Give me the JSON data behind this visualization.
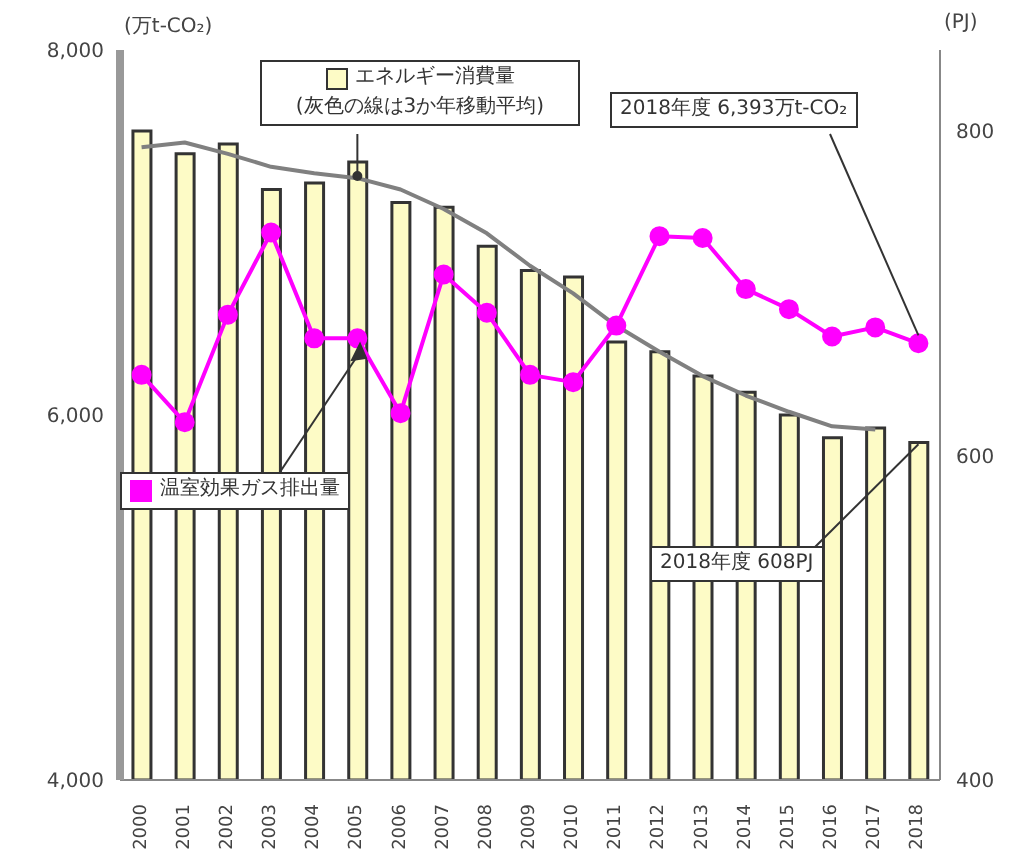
{
  "chart_data": {
    "type": "bar",
    "ylabel": "(万t-CO₂)",
    "y2label": "(PJ)",
    "categories": [
      "2000",
      "2001",
      "2002",
      "2003",
      "2004",
      "2005",
      "2006",
      "2007",
      "2008",
      "2009",
      "2010",
      "2011",
      "2012",
      "2013",
      "2014",
      "2015",
      "2016",
      "2017",
      "2018"
    ],
    "series": [
      {
        "name": "エネルギー消費量",
        "type": "bar",
        "axis": "y2",
        "color": "#fdfbc6",
        "values": [
          800,
          786,
          792,
          764,
          768,
          781,
          756,
          753,
          729,
          714,
          710,
          670,
          664,
          649,
          639,
          625,
          611,
          617,
          608
        ]
      },
      {
        "type": "line",
        "axis": "y2",
        "color": "#808080",
        "marker": "none",
        "values": [
          790,
          793,
          786,
          778,
          774,
          771,
          764,
          752,
          737,
          717,
          700,
          680,
          664,
          649,
          637,
          627,
          618,
          616,
          null
        ]
      },
      {
        "name": "温室効果ガス排出量",
        "type": "line",
        "color": "#ff00ff",
        "marker": "circle",
        "values": [
          6220,
          5960,
          6550,
          7000,
          6420,
          6420,
          6010,
          6770,
          6560,
          6220,
          6180,
          6490,
          6980,
          6970,
          6690,
          6580,
          6430,
          6480,
          6393
        ]
      }
    ],
    "ylim": [
      4000,
      8000
    ],
    "yticks": [
      {
        "value": 4000,
        "label": "4,000"
      },
      {
        "value": 6000,
        "label": "6,000"
      },
      {
        "value": 8000,
        "label": "8,000"
      }
    ],
    "legend": "top left",
    "y2lim": [
      400,
      850
    ],
    "y2ticks": [
      400,
      600,
      800
    ],
    "annotations": [
      {
        "text": "(灰色の線は3か年移動平均)",
        "x": "2005",
        "y": 7310
      },
      {
        "text": "2018年度 6,393万t-CO₂",
        "x": "2018",
        "y": 6393
      },
      {
        "text": "2018年度 608PJ",
        "x": "2018",
        "y": 5840
      }
    ]
  }
}
